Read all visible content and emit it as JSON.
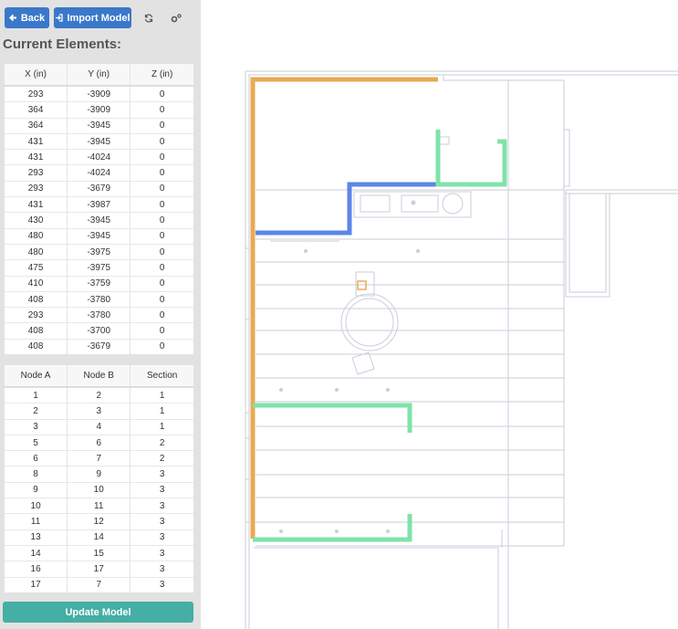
{
  "toolbar": {
    "back": "Back",
    "import": "Import Model"
  },
  "heading": "Current Elements:",
  "coordinates": {
    "headers": [
      "X (in)",
      "Y (in)",
      "Z (in)"
    ],
    "rows": [
      [
        293,
        -3909,
        0
      ],
      [
        364,
        -3909,
        0
      ],
      [
        364,
        -3945,
        0
      ],
      [
        431,
        -3945,
        0
      ],
      [
        431,
        -4024,
        0
      ],
      [
        293,
        -4024,
        0
      ],
      [
        293,
        -3679,
        0
      ],
      [
        431,
        -3987,
        0
      ],
      [
        430,
        -3945,
        0
      ],
      [
        480,
        -3945,
        0
      ],
      [
        480,
        -3975,
        0
      ],
      [
        475,
        -3975,
        0
      ],
      [
        410,
        -3759,
        0
      ],
      [
        408,
        -3780,
        0
      ],
      [
        293,
        -3780,
        0
      ],
      [
        408,
        -3700,
        0
      ],
      [
        408,
        -3679,
        0
      ]
    ]
  },
  "connections": {
    "headers": [
      "Node A",
      "Node B",
      "Section"
    ],
    "rows": [
      [
        1,
        2,
        1
      ],
      [
        2,
        3,
        1
      ],
      [
        3,
        4,
        1
      ],
      [
        5,
        6,
        2
      ],
      [
        6,
        7,
        2
      ],
      [
        8,
        9,
        3
      ],
      [
        9,
        10,
        3
      ],
      [
        10,
        11,
        3
      ],
      [
        11,
        12,
        3
      ],
      [
        13,
        14,
        3
      ],
      [
        14,
        15,
        3
      ],
      [
        16,
        17,
        3
      ],
      [
        17,
        7,
        3
      ]
    ]
  },
  "update_button": "Update Model"
}
